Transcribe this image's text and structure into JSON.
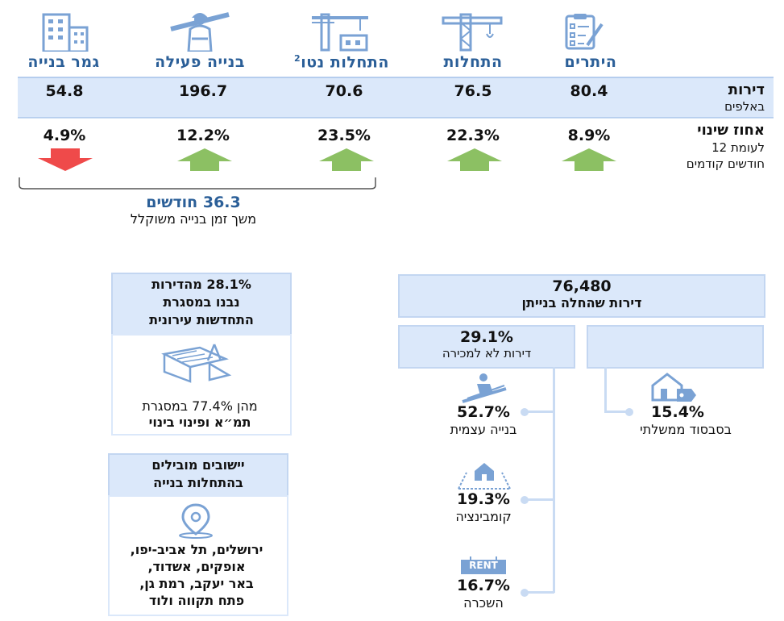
{
  "categories": [
    {
      "key": "permits",
      "label": "היתרים",
      "value": "80.4",
      "change": "8.9%",
      "dir": "up",
      "icon": "checklist-icon"
    },
    {
      "key": "starts",
      "label": "התחלות",
      "value": "76.5",
      "change": "22.3%",
      "dir": "up",
      "icon": "crane-icon"
    },
    {
      "key": "net_starts",
      "label": "התחלות נטו",
      "sup": "2",
      "value": "70.6",
      "change": "23.5%",
      "dir": "up",
      "icon": "construction-site-icon"
    },
    {
      "key": "active",
      "label": "בנייה פעילה",
      "value": "196.7",
      "change": "12.2%",
      "dir": "up",
      "icon": "worker-icon"
    },
    {
      "key": "completed",
      "label": "גמר בנייה",
      "value": "54.8",
      "change": "4.9%",
      "dir": "down",
      "icon": "building-icon"
    }
  ],
  "row_labels": {
    "dwellings": "דירות",
    "dwellings_unit": "באלפים",
    "change": "אחוז שינוי",
    "change_sub1": "לעומת 12",
    "change_sub2": "חודשים קודמים"
  },
  "duration": {
    "value": "36.3 חודשים",
    "label": "משך זמן בנייה משוקלל"
  },
  "starts_box": {
    "total": "76,480",
    "label": "דירות שהחלה בנייתן"
  },
  "not_for_sale": {
    "pct": "29.1%",
    "label": "דירות לא למכירה"
  },
  "segments": [
    {
      "pct": "52.7%",
      "label": "בנייה עצמית",
      "icon": "roofer-icon"
    },
    {
      "pct": "19.3%",
      "label": "קומבינציה",
      "icon": "house-plot-icon"
    },
    {
      "pct": "16.7%",
      "label": "השכרה",
      "icon": "rent-sign-icon",
      "sign": "RENT"
    }
  ],
  "subsidized": {
    "pct": "15.4%",
    "label": "בסבסוד ממשלתי",
    "icon": "house-tag-icon"
  },
  "urban_renewal": {
    "head1": "28.1% מהדירות",
    "head2": "נבנו במסגרת",
    "head3": "התחדשות עירונית",
    "body1": "מהן 77.4% במסגרת",
    "body2": "תמ״א ופינוי בינוי",
    "icon": "blueprint-icon"
  },
  "leading": {
    "head1": "יישובים מובילים",
    "head2": "בהתחלות בנייה",
    "cities": [
      "ירושלים, תל אביב-יפו,",
      "אופקים, אשדוד,",
      "באר יעקב, רמת גן,",
      "פתח תקווה ולוד"
    ],
    "icon": "location-pin-icon"
  },
  "colors": {
    "up": "#8cc063",
    "down": "#ef4a4a",
    "label": "#2b5f98",
    "band": "#dbe8fa"
  }
}
